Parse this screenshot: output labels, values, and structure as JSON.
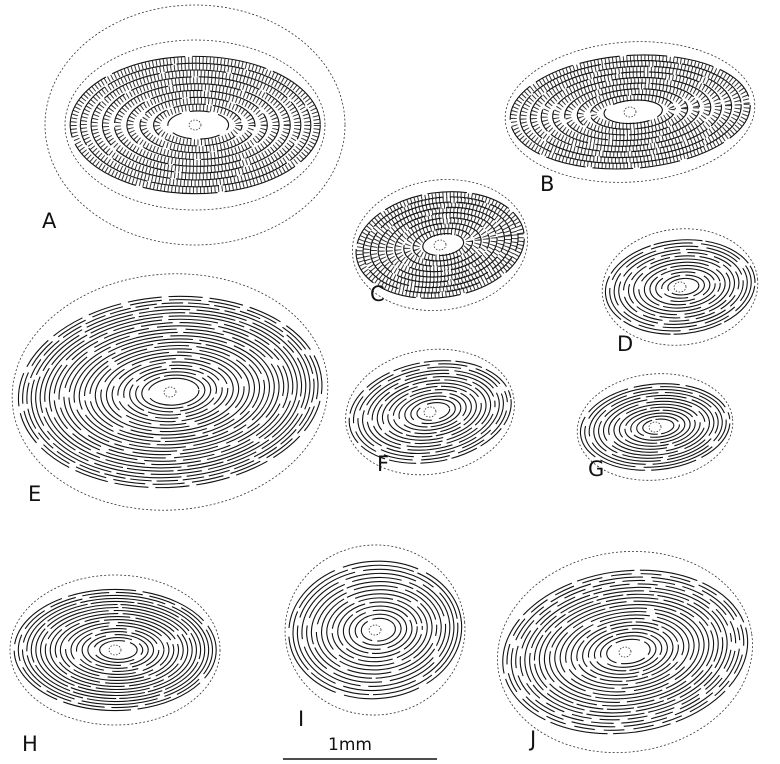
{
  "figure": {
    "panels": [
      {
        "label": "A"
      },
      {
        "label": "B"
      },
      {
        "label": "C"
      },
      {
        "label": "D"
      },
      {
        "label": "E"
      },
      {
        "label": "F"
      },
      {
        "label": "G"
      },
      {
        "label": "H"
      },
      {
        "label": "I"
      },
      {
        "label": "J"
      }
    ],
    "scale_bar": "1mm"
  }
}
